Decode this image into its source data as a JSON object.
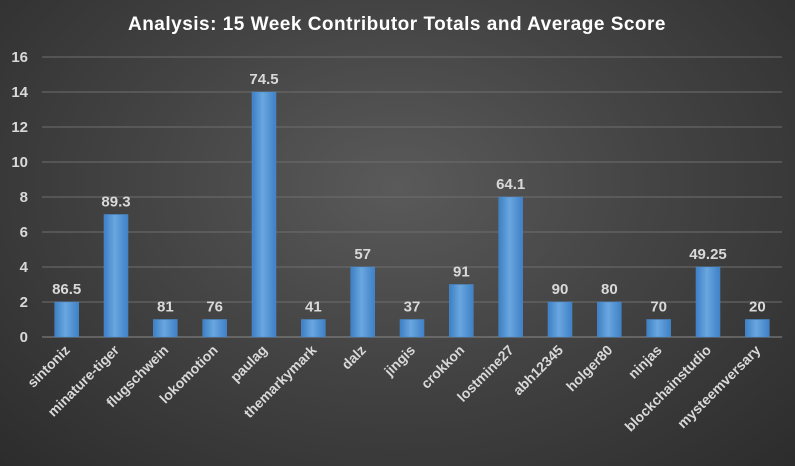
{
  "chart_data": {
    "type": "bar",
    "title": "Analysis:  15 Week Contributor Totals and Average Score",
    "xlabel": "",
    "ylabel": "",
    "ylim": [
      0,
      16
    ],
    "yticks": [
      0,
      2,
      4,
      6,
      8,
      10,
      12,
      14,
      16
    ],
    "grid": true,
    "legend": "none",
    "bar_color": "#5b9bd5",
    "categories": [
      "sintoniz",
      "minature-tiger",
      "flugschwein",
      "lokomotion",
      "paulag",
      "themarkymark",
      "dalz",
      "jingis",
      "crokkon",
      "lostmine27",
      "abh12345",
      "holger80",
      "ninjas",
      "blockchainstudio",
      "mysteemversary"
    ],
    "values": [
      2,
      7,
      1,
      1,
      14,
      1,
      4,
      1,
      3,
      8,
      2,
      2,
      1,
      4,
      1
    ],
    "data_labels": [
      "86.5",
      "89.3",
      "81",
      "76",
      "74.5",
      "41",
      "57",
      "37",
      "91",
      "64.1",
      "90",
      "80",
      "70",
      "49.25",
      "20"
    ]
  }
}
